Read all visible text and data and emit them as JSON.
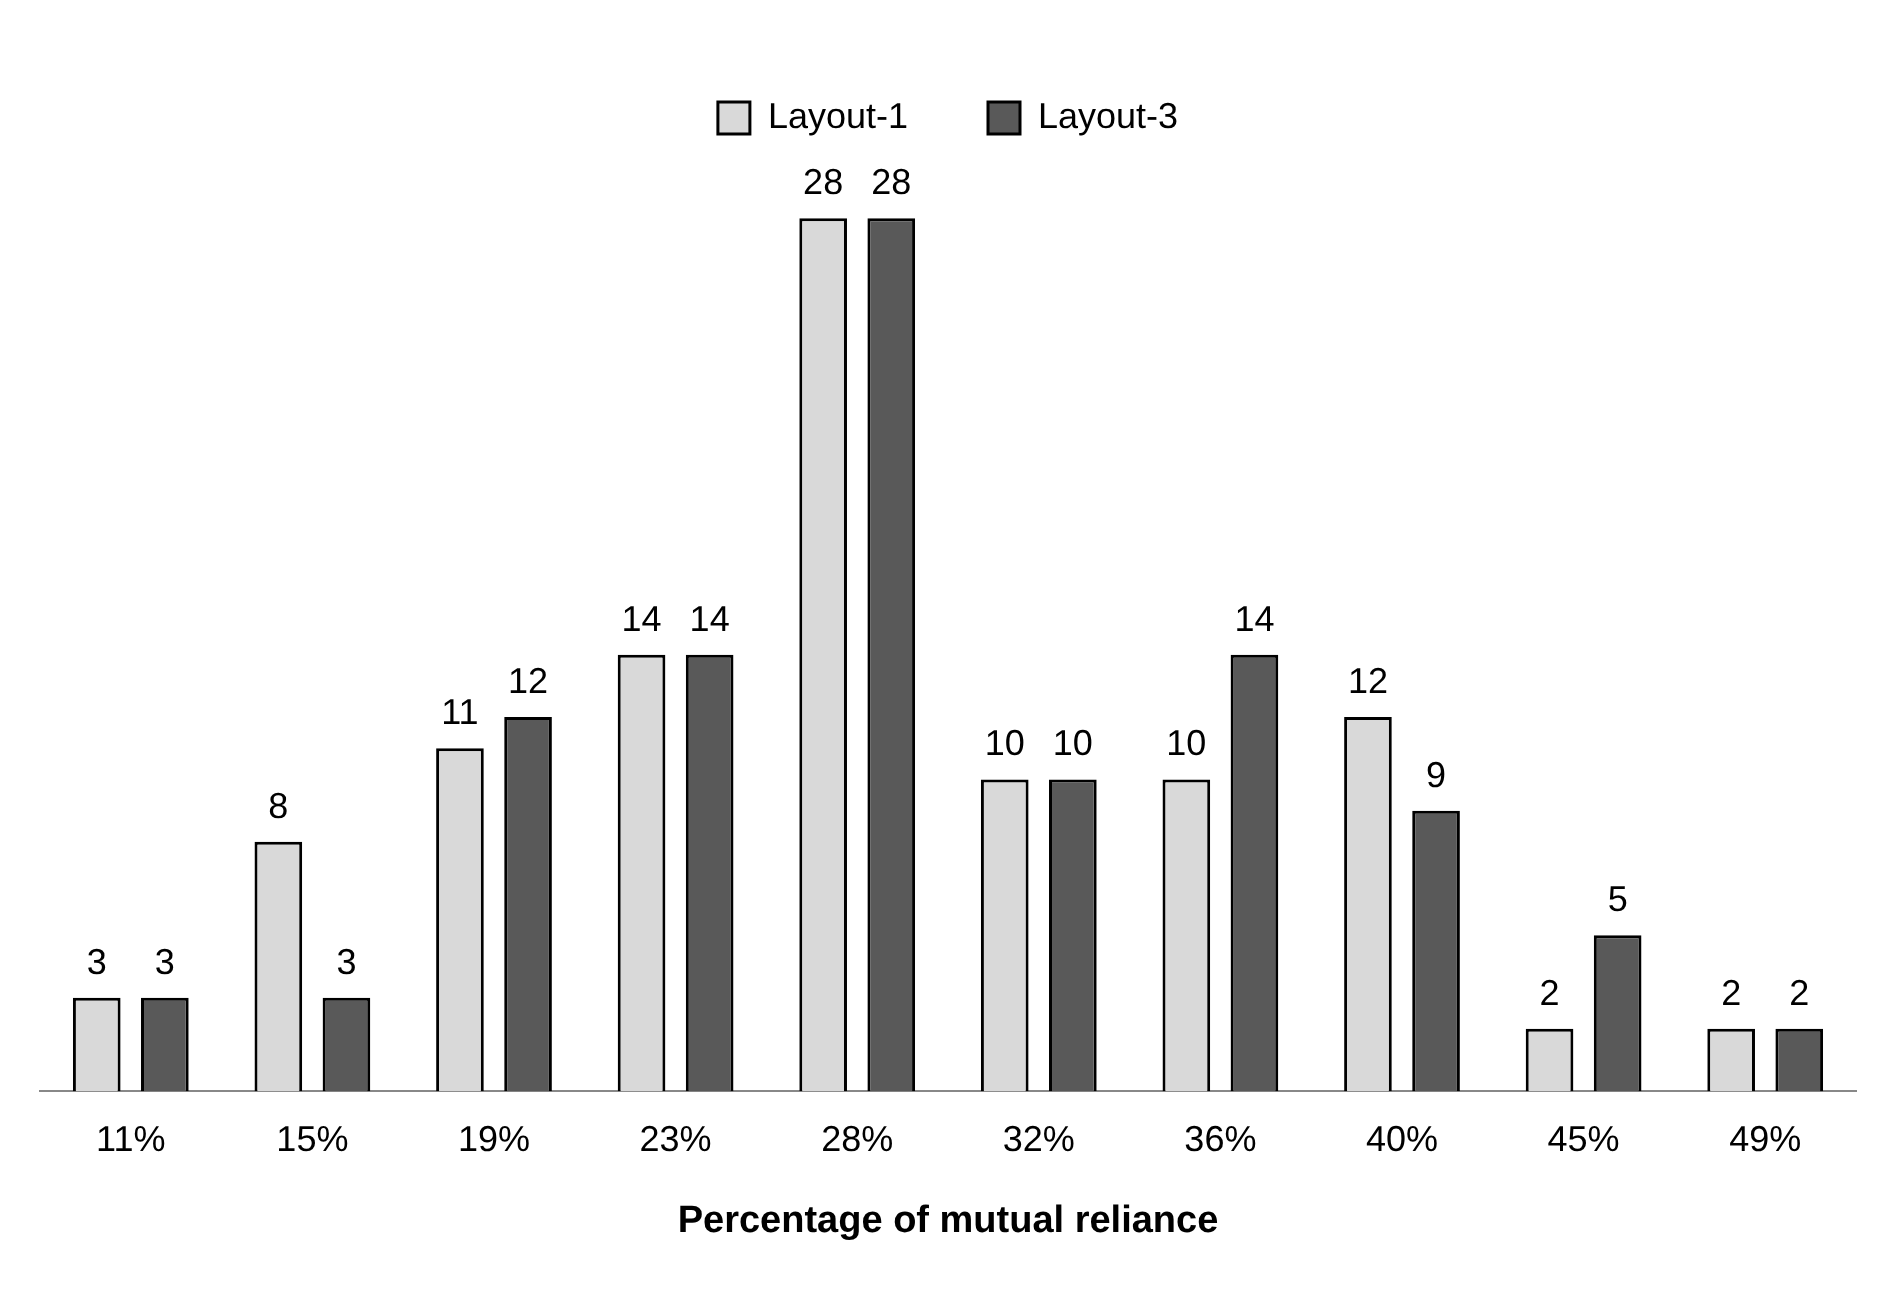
{
  "chart_data": {
    "type": "bar",
    "xlabel": "Percentage of mutual reliance",
    "categories": [
      "11%",
      "15%",
      "19%",
      "23%",
      "28%",
      "32%",
      "36%",
      "40%",
      "45%",
      "49%"
    ],
    "series": [
      {
        "name": "Layout-1",
        "color": "#d9d9d9",
        "values": [
          3,
          8,
          11,
          14,
          28,
          10,
          10,
          12,
          2,
          2
        ]
      },
      {
        "name": "Layout-3",
        "color": "#595959",
        "values": [
          3,
          3,
          12,
          14,
          28,
          10,
          14,
          9,
          5,
          2
        ]
      }
    ],
    "data_labels": true,
    "legend": "top",
    "grid": false
  }
}
